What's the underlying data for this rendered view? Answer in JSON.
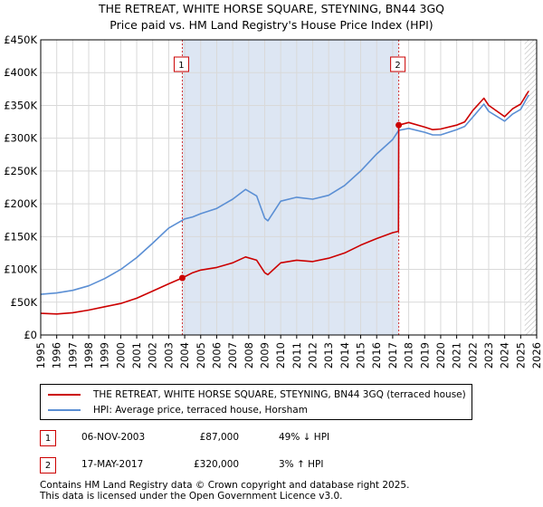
{
  "title_line1": "THE RETREAT, WHITE HORSE SQUARE, STEYNING, BN44 3GQ",
  "title_line2": "Price paid vs. HM Land Registry's House Price Index (HPI)",
  "colors": {
    "property": "#cc0000",
    "hpi": "#5b8fd4",
    "band": "#dde6f3",
    "grid": "#d9d9d9"
  },
  "chart_data": {
    "type": "line",
    "title": "Price paid vs. HM Land Registry's House Price Index (HPI)",
    "xlim": [
      1995,
      2026
    ],
    "ylim": [
      0,
      450000
    ],
    "y_ticks": [
      {
        "value": 0,
        "label": "£0"
      },
      {
        "value": 50000,
        "label": "£50K"
      },
      {
        "value": 100000,
        "label": "£100K"
      },
      {
        "value": 150000,
        "label": "£150K"
      },
      {
        "value": 200000,
        "label": "£200K"
      },
      {
        "value": 250000,
        "label": "£250K"
      },
      {
        "value": 300000,
        "label": "£300K"
      },
      {
        "value": 350000,
        "label": "£350K"
      },
      {
        "value": 400000,
        "label": "£400K"
      },
      {
        "value": 450000,
        "label": "£450K"
      }
    ],
    "x_ticks": [
      "1995",
      "1996",
      "1997",
      "1998",
      "1999",
      "2000",
      "2001",
      "2002",
      "2003",
      "2004",
      "2005",
      "2006",
      "2007",
      "2008",
      "2009",
      "2010",
      "2011",
      "2012",
      "2013",
      "2014",
      "2015",
      "2016",
      "2017",
      "2018",
      "2019",
      "2020",
      "2021",
      "2022",
      "2023",
      "2024",
      "2025",
      "2026"
    ],
    "shaded_region": {
      "from": 2003.85,
      "to": 2017.38
    },
    "hatched_region_from": 2025.25,
    "series": [
      {
        "name": "THE RETREAT, WHITE HORSE SQUARE, STEYNING, BN44 3GQ (terraced house)",
        "x": [
          1995,
          1996,
          1997,
          1998,
          1999,
          2000,
          2001,
          2002,
          2003,
          2003.85,
          2004.5,
          2005,
          2006,
          2007,
          2007.8,
          2008.5,
          2009,
          2009.2,
          2010,
          2011,
          2012,
          2013,
          2014,
          2015,
          2016,
          2017,
          2017.36,
          2017.38,
          2018,
          2019,
          2019.5,
          2020,
          2021,
          2021.5,
          2022,
          2022.7,
          2023,
          2024,
          2024.5,
          2025,
          2025.5
        ],
        "values": [
          33000,
          32000,
          34000,
          38000,
          43000,
          48000,
          56000,
          67000,
          78000,
          87000,
          95000,
          99000,
          103000,
          110000,
          119000,
          114000,
          95000,
          92000,
          110000,
          114000,
          112000,
          117000,
          125000,
          137000,
          147000,
          156000,
          158000,
          320000,
          324000,
          317000,
          313000,
          314000,
          320000,
          325000,
          342000,
          361000,
          350000,
          333000,
          345000,
          352000,
          372000
        ]
      },
      {
        "name": "HPI: Average price, terraced house, Horsham",
        "x": [
          1995,
          1996,
          1997,
          1998,
          1999,
          2000,
          2001,
          2002,
          2003,
          2004,
          2004.5,
          2005,
          2006,
          2007,
          2007.8,
          2008.5,
          2009,
          2009.2,
          2010,
          2011,
          2012,
          2013,
          2014,
          2015,
          2016,
          2017,
          2017.38,
          2018,
          2019,
          2019.5,
          2020,
          2021,
          2021.5,
          2022,
          2022.7,
          2023,
          2024,
          2024.5,
          2025,
          2025.5
        ],
        "values": [
          62000,
          64000,
          68000,
          75000,
          86000,
          100000,
          118000,
          140000,
          163000,
          177000,
          180000,
          185000,
          193000,
          207000,
          222000,
          212000,
          178000,
          174000,
          204000,
          210000,
          207000,
          213000,
          228000,
          250000,
          276000,
          298000,
          312000,
          315000,
          309000,
          305000,
          305000,
          313000,
          318000,
          332000,
          352000,
          341000,
          326000,
          337000,
          344000,
          366000
        ]
      }
    ],
    "annotations": [
      {
        "label": "1",
        "x": 2003.85,
        "y": 87000
      },
      {
        "label": "2",
        "x": 2017.38,
        "y": 320000
      }
    ]
  },
  "legend": {
    "property_label": "THE RETREAT, WHITE HORSE SQUARE, STEYNING, BN44 3GQ (terraced house)",
    "hpi_label": "HPI: Average price, terraced house, Horsham"
  },
  "transactions": [
    {
      "num": "1",
      "date": "06-NOV-2003",
      "price": "£87,000",
      "hpi": "49% ↓ HPI"
    },
    {
      "num": "2",
      "date": "17-MAY-2017",
      "price": "£320,000",
      "hpi": "3% ↑ HPI"
    }
  ],
  "footer": {
    "line1": "Contains HM Land Registry data © Crown copyright and database right 2025.",
    "line2": "This data is licensed under the Open Government Licence v3.0."
  }
}
